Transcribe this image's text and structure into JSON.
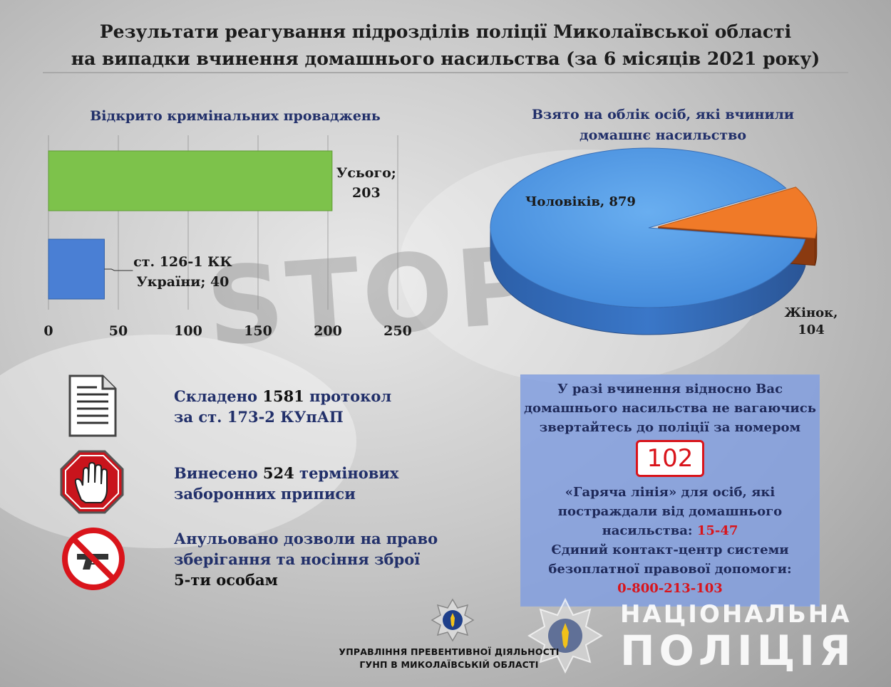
{
  "title_line1": "Результати реагування підрозділів поліції Миколаївської області",
  "title_line2": "на випадки вчинення домашнього насильства (за 6 місяців 2021 року)",
  "background_text": "STOP",
  "chart_data": [
    {
      "type": "bar",
      "orientation": "horizontal",
      "title": "Відкрито кримінальних проваджень",
      "categories": [
        "Усього",
        "ст. 126-1 КК України"
      ],
      "values": [
        203,
        40
      ],
      "data_labels": [
        [
          "Усього;",
          "203"
        ],
        [
          "ст. 126-1 КК",
          "України; 40"
        ]
      ],
      "colors": [
        "#7dc24b",
        "#4a7fd4"
      ],
      "xlim": [
        0,
        250
      ],
      "xticks": [
        "0",
        "50",
        "100",
        "150",
        "200",
        "250"
      ],
      "grid": true
    },
    {
      "type": "pie",
      "title_line1": "Взято на облік осіб, які вчинили",
      "title_line2": "домашнє насильство",
      "categories": [
        "Чоловіків",
        "Жінок"
      ],
      "values": [
        879,
        104
      ],
      "labels": [
        "Чоловіків, 879",
        "Жінок,",
        "104"
      ],
      "colors": [
        "#4a90e0",
        "#f07a28"
      ]
    }
  ],
  "stats": [
    {
      "icon": "document-icon",
      "line1_pre": "Складено ",
      "num": "1581",
      "line1_post": " протокол",
      "line2": "за ст. 173-2 КУпАП"
    },
    {
      "icon": "stop-hand-icon",
      "line1_pre": "Винесено ",
      "num": "524",
      "line1_post": " термінових",
      "line2": "заборонних приписи"
    },
    {
      "icon": "no-gun-icon",
      "line1": "Анульовано дозволи на право",
      "line2": "зберігання та носіння зброї",
      "line3": "5-ти особам"
    }
  ],
  "hotline": {
    "line1": "У разі вчинення відносно Вас",
    "line2": "домашнього насильства не вагаючись",
    "line3": "звертайтесь до поліції за номером",
    "police_number": "102",
    "line4": "«Гаряча лінія» для осіб, які",
    "line5": "постраждали від домашнього",
    "line6_pre": "насильства: ",
    "line6_num": "15-47",
    "line7": "Єдиний контакт-центр системи",
    "line8": "безоплатної правової допомоги:",
    "line9_num": "0-800-213-103"
  },
  "footer": {
    "line1": "УПРАВЛІННЯ ПРЕВЕНТИВНОЇ ДІЯЛЬНОСТІ",
    "line2": "ГУНП В МИКОЛАЇВСЬКІЙ ОБЛАСТІ"
  },
  "brand": {
    "line1": "НАЦІОНАЛЬНА",
    "line2": "ПОЛІЦІЯ"
  }
}
